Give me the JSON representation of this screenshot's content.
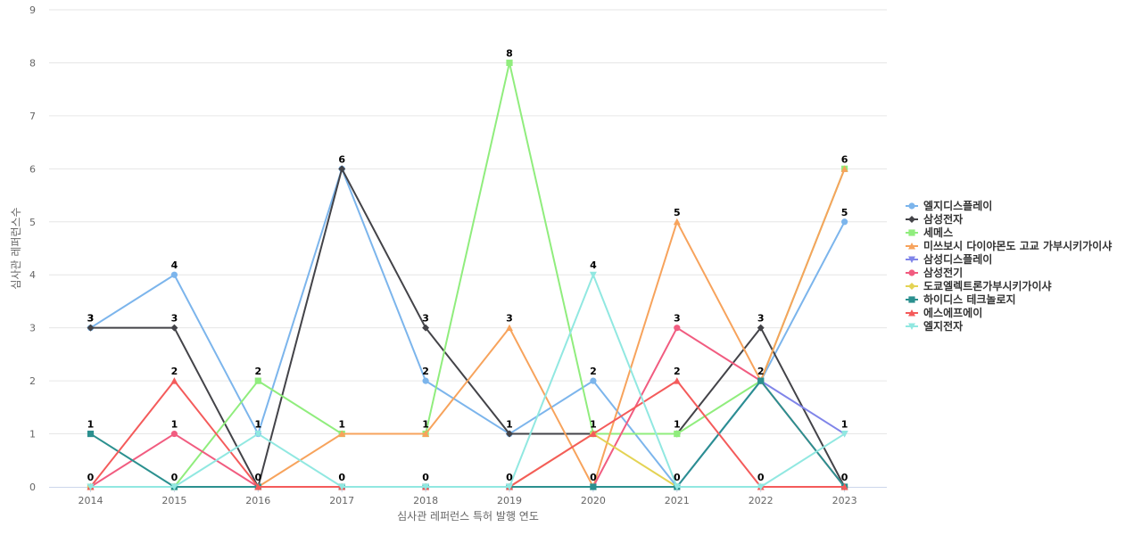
{
  "chart_data": {
    "type": "line",
    "xlabel": "심사관 레퍼런스 특허 발행 연도",
    "ylabel": "심사관 레퍼런스수",
    "categories": [
      "2014",
      "2015",
      "2016",
      "2017",
      "2018",
      "2019",
      "2020",
      "2021",
      "2022",
      "2023"
    ],
    "ylim": [
      0,
      9
    ],
    "yticks": [
      "0",
      "1",
      "2",
      "3",
      "4",
      "5",
      "6",
      "7",
      "8",
      "9"
    ],
    "grid": true,
    "legend_position": "right",
    "series": [
      {
        "name": "엘지디스플레이",
        "color": "#7cb5ec",
        "marker": "circle",
        "values": [
          3,
          4,
          1,
          6,
          2,
          1,
          2,
          0,
          2,
          5
        ],
        "labels": [
          "3",
          "4",
          "1",
          "",
          "2",
          "1",
          "2",
          "",
          "",
          "5"
        ]
      },
      {
        "name": "삼성전자",
        "color": "#434348",
        "marker": "diamond",
        "values": [
          3,
          3,
          0,
          6,
          3,
          1,
          1,
          1,
          3,
          0
        ],
        "labels": [
          "3",
          "3",
          "0",
          "6",
          "3",
          "",
          "",
          "",
          "3",
          ""
        ]
      },
      {
        "name": "세메스",
        "color": "#90ed7d",
        "marker": "square",
        "values": [
          0,
          0,
          2,
          1,
          1,
          8,
          1,
          1,
          2,
          6
        ],
        "labels": [
          "",
          "",
          "2",
          "",
          "",
          "8",
          "",
          "",
          "",
          ""
        ]
      },
      {
        "name": "미쓰보시 다이야몬도 고교 가부시키가이샤",
        "color": "#f7a35c",
        "marker": "triangle",
        "values": [
          0,
          0,
          0,
          1,
          1,
          3,
          0,
          5,
          2,
          6
        ],
        "labels": [
          "",
          "",
          "",
          "1",
          "1",
          "3",
          "",
          "5",
          "",
          "6"
        ]
      },
      {
        "name": "삼성디스플레이",
        "color": "#8085e9",
        "marker": "triangle-down",
        "values": [
          0,
          0,
          0,
          0,
          0,
          0,
          0,
          0,
          2,
          1
        ],
        "labels": [
          "",
          "",
          "",
          "",
          "",
          "",
          "",
          "",
          "",
          ""
        ]
      },
      {
        "name": "삼성전기",
        "color": "#f15c80",
        "marker": "circle",
        "values": [
          0,
          1,
          0,
          0,
          0,
          0,
          0,
          3,
          2,
          0
        ],
        "labels": [
          "",
          "1",
          "",
          "",
          "",
          "",
          "",
          "3",
          "",
          ""
        ]
      },
      {
        "name": "도쿄엘렉트론가부시키가이샤",
        "color": "#e4d354",
        "marker": "diamond",
        "values": [
          0,
          0,
          0,
          0,
          0,
          0,
          1,
          0,
          0,
          0
        ],
        "labels": [
          "",
          "",
          "",
          "",
          "",
          "",
          "",
          "",
          "",
          ""
        ]
      },
      {
        "name": "하이디스 테크놀로지",
        "color": "#2b908f",
        "marker": "square",
        "values": [
          1,
          0,
          0,
          0,
          0,
          0,
          0,
          0,
          2,
          0
        ],
        "labels": [
          "1",
          "",
          "",
          "",
          "",
          "",
          "",
          "",
          "",
          ""
        ]
      },
      {
        "name": "에스에프에이",
        "color": "#f45b5b",
        "marker": "triangle",
        "values": [
          0,
          2,
          0,
          0,
          0,
          0,
          1,
          2,
          0,
          0
        ],
        "labels": [
          "0",
          "2",
          "",
          "0",
          "0",
          "0",
          "1",
          "2",
          "0",
          ""
        ]
      },
      {
        "name": "엘지전자",
        "color": "#91e8e1",
        "marker": "triangle-down",
        "values": [
          0,
          0,
          1,
          0,
          0,
          0,
          4,
          0,
          0,
          1
        ],
        "labels": [
          "",
          "0",
          "",
          "",
          "",
          "",
          "4",
          "0",
          "",
          "1"
        ]
      }
    ],
    "extra_labels": [
      {
        "x": "2016",
        "y": 1,
        "text": "1"
      },
      {
        "x": "2020",
        "y": 0,
        "text": "0"
      },
      {
        "x": "2021",
        "y": 1,
        "text": "1"
      },
      {
        "x": "2022",
        "y": 2,
        "text": "2"
      },
      {
        "x": "2023",
        "y": 0,
        "text": "0"
      }
    ]
  }
}
